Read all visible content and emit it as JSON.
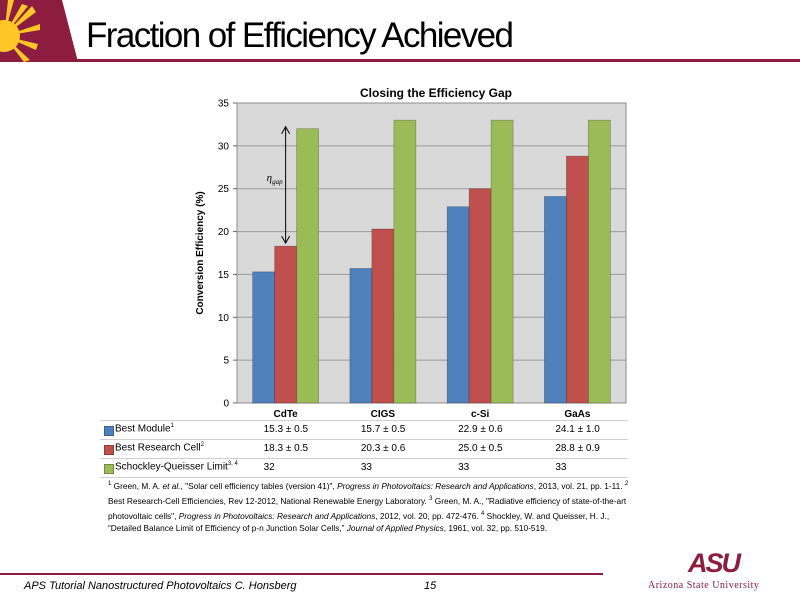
{
  "slide": {
    "title": "Fraction of Efficiency Achieved",
    "footer_left": "APS Tutorial Nanostructured Photovoltaics   C. Honsberg",
    "page_number": "15",
    "university_mark": "ASU",
    "university_name": "Arizona State University",
    "brand_color": "#8c1d40",
    "gold_color": "#ffc627"
  },
  "chart_data": {
    "type": "bar",
    "title": "Closing the Efficiency Gap",
    "xlabel": "",
    "ylabel": "Conversion Efficiency (%)",
    "ylim": [
      0,
      35
    ],
    "yticks": [
      0,
      5,
      10,
      15,
      20,
      25,
      30,
      35
    ],
    "grid": true,
    "legend": "table-below",
    "categories": [
      "CdTe",
      "CIGS",
      "c-Si",
      "GaAs"
    ],
    "series": [
      {
        "name": "Best Module",
        "sup": "1",
        "color": "#4f81bd",
        "values": [
          15.3,
          15.7,
          22.9,
          24.1
        ],
        "labels": [
          "15.3 ± 0.5",
          "15.7 ± 0.5",
          "22.9 ± 0.6",
          "24.1 ± 1.0"
        ]
      },
      {
        "name": "Best Research Cell",
        "sup": "2",
        "color": "#c0504d",
        "values": [
          18.3,
          20.3,
          25.0,
          28.8
        ],
        "labels": [
          "18.3 ± 0.5",
          "20.3 ± 0.6",
          "25.0 ± 0.5",
          "28.8 ± 0.9"
        ]
      },
      {
        "name": "Schockley-Queisser Limit",
        "sup": "3, 4",
        "color": "#9bbb59",
        "values": [
          32,
          33,
          33,
          33
        ],
        "labels": [
          "32",
          "33",
          "33",
          "33"
        ]
      }
    ],
    "annotation": {
      "text": "η",
      "subscript": "gap",
      "category": "CdTe",
      "from": 18.3,
      "to": 32
    }
  },
  "references": [
    {
      "sup": "1",
      "parts": [
        {
          "t": " Green, M. A. "
        },
        {
          "t": "et al.",
          "i": true
        },
        {
          "t": ", \"Solar cell efficiency tables (version 41)\", "
        },
        {
          "t": "Progress in Photovoltaics: Research and Applications",
          "i": true
        },
        {
          "t": ", 2013, vol. 21, pp. 1-11.  "
        }
      ]
    },
    {
      "sup": "2",
      "parts": [
        {
          "t": " Best Research-Cell Efficiencies, Rev 12-2012, National Renewable Energy Laboratory.  "
        }
      ]
    },
    {
      "sup": "3",
      "parts": [
        {
          "t": " Green, M. A., \"Radiative efficiency of state-of-the-art  photovoltaic cells\", "
        },
        {
          "t": "Progress in Photovoltaics: Research and Applications",
          "i": true
        },
        {
          "t": ", 2012, vol. 20, pp. 472-476.  "
        }
      ]
    },
    {
      "sup": "4",
      "parts": [
        {
          "t": " Shockley, W. and Queisser, H. J., “Detailed Balance Limit of Efficiency of p-n Junction Solar Cells,” "
        },
        {
          "t": "Journal of Applied Physics",
          "i": true
        },
        {
          "t": ", 1961, vol. 32, pp. 510-519."
        }
      ]
    }
  ]
}
